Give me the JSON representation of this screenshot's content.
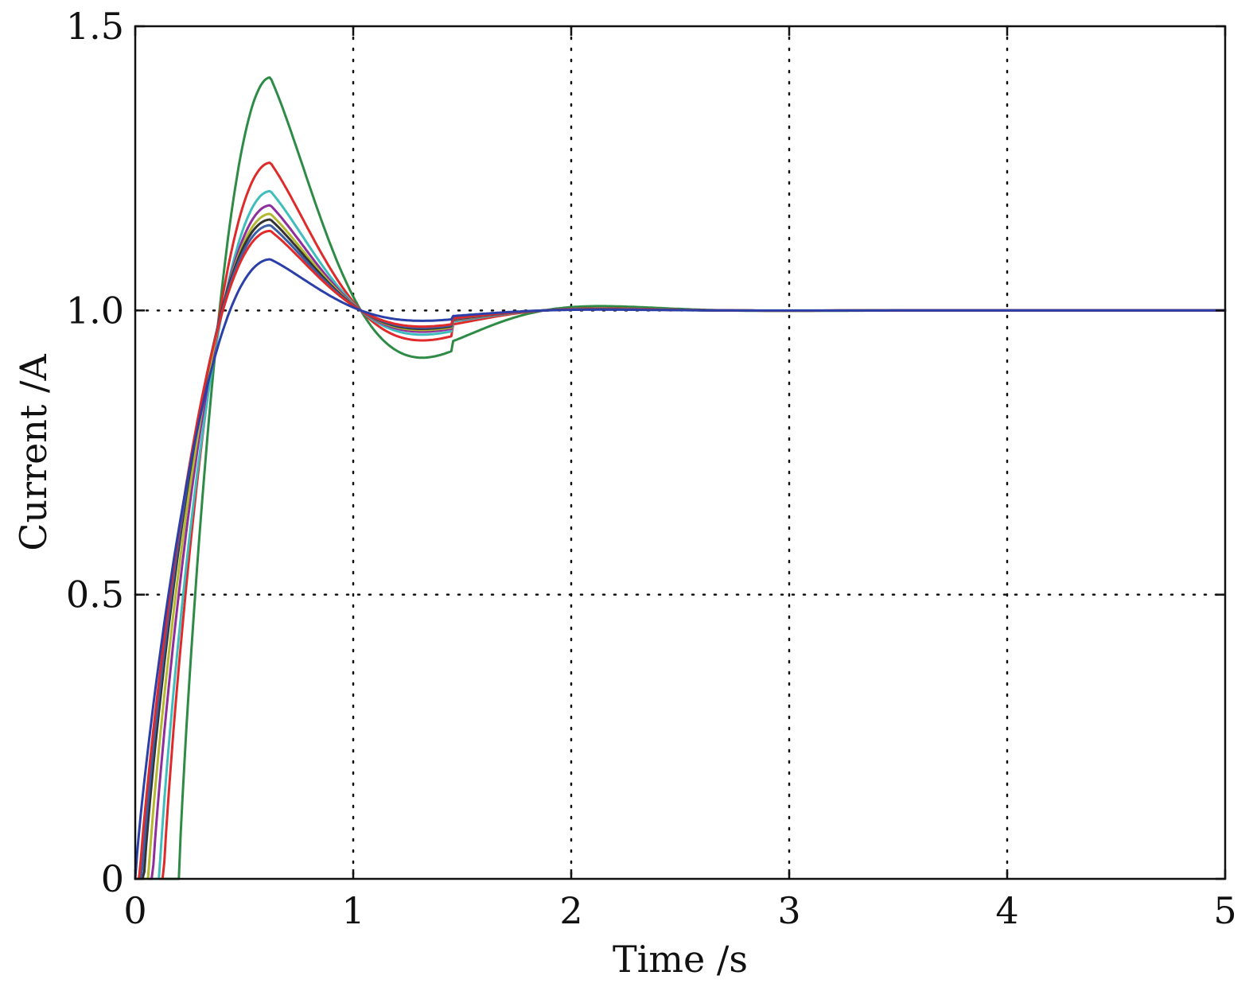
{
  "chart_data": {
    "type": "line",
    "xlabel": "Time /s",
    "ylabel": "Current /A",
    "xlim": [
      0,
      5
    ],
    "ylim": [
      0,
      1.5
    ],
    "xticks": [
      0,
      1,
      2,
      3,
      4,
      5
    ],
    "xtick_labels": [
      "0",
      "1",
      "2",
      "3",
      "4",
      "5"
    ],
    "yticks": [
      0,
      0.5,
      1.0,
      1.5
    ],
    "ytick_labels": [
      "0",
      "0.5",
      "1.0",
      "1.5"
    ],
    "grid": true,
    "legend": "none",
    "series": [
      {
        "color": "#2e8b46",
        "delay": 0.2,
        "peak": 1.41,
        "min": 0.945
      },
      {
        "color": "#e02a2a",
        "delay": 0.13,
        "peak": 1.26,
        "min": 0.975
      },
      {
        "color": "#3fbdbd",
        "delay": 0.11,
        "peak": 1.21,
        "min": 0.98
      },
      {
        "color": "#8e2d9c",
        "delay": 0.08,
        "peak": 1.185,
        "min": 0.982
      },
      {
        "color": "#b4b830",
        "delay": 0.06,
        "peak": 1.17,
        "min": 0.983
      },
      {
        "color": "#333333",
        "delay": 0.04,
        "peak": 1.16,
        "min": 0.984
      },
      {
        "color": "#3c5fa8",
        "delay": 0.03,
        "peak": 1.15,
        "min": 0.985
      },
      {
        "color": "#e02a2a",
        "delay": 0.02,
        "peak": 1.14,
        "min": 0.986
      },
      {
        "color": "#2a3fa8",
        "delay": 0.0,
        "peak": 1.09,
        "min": 0.99
      }
    ]
  }
}
